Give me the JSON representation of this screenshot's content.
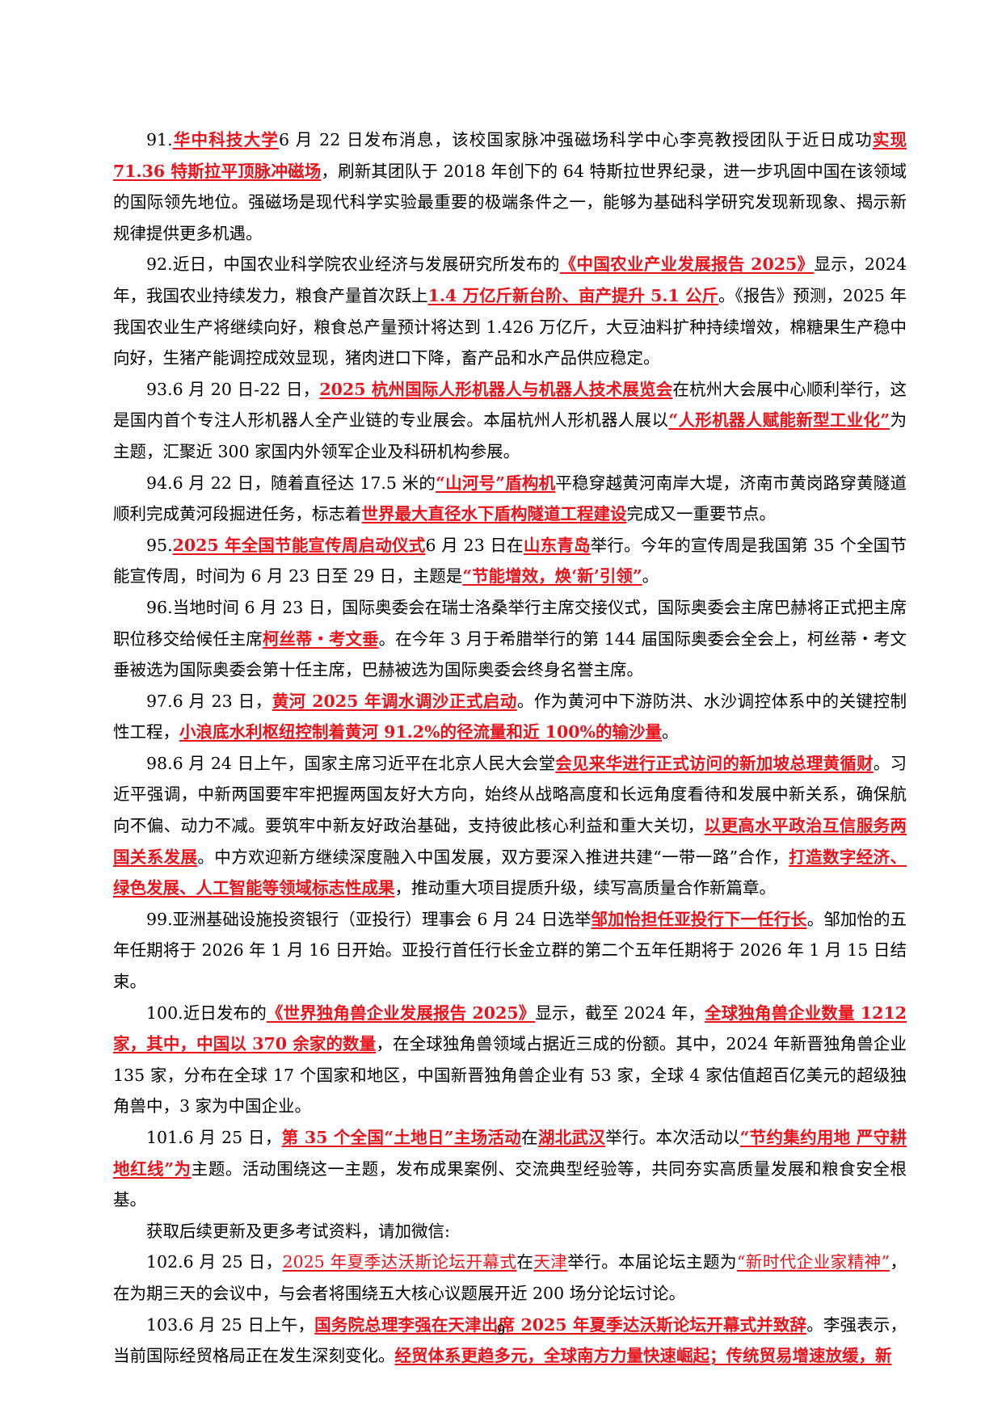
{
  "page_number": "9",
  "paragraphs": [
    {
      "id": "p91",
      "segments": [
        {
          "t": "91.",
          "h": 0
        },
        {
          "t": "华中科技大学",
          "h": 1
        },
        {
          "t": "6 月 22 日发布消息，该校国家脉冲强磁场科学中心李亮教授团队于近日成功",
          "h": 0
        },
        {
          "t": "实现 71.36 特斯拉平顶脉冲磁场",
          "h": 1
        },
        {
          "t": "，刷新其团队于 2018 年创下的 64 特斯拉世界纪录，进一步巩固中国在该领域的国际领先地位。强磁场是现代科学实验最重要的极端条件之一，能够为基础科学研究发现新现象、揭示新规律提供更多机遇。",
          "h": 0
        }
      ]
    },
    {
      "id": "p92",
      "segments": [
        {
          "t": "92.近日，中国农业科学院农业经济与发展研究所发布的",
          "h": 0
        },
        {
          "t": "《中国农业产业发展报告 2025》",
          "h": 1
        },
        {
          "t": "显示，2024 年，我国农业持续发力，粮食产量首次跃上",
          "h": 0
        },
        {
          "t": "1.4 万亿斤新台阶、亩产提升 5.1 公斤",
          "h": 1
        },
        {
          "t": "。《报告》预测，2025 年我国农业生产将继续向好，粮食总产量预计将达到 1.426 万亿斤，大豆油料扩种持续增效，棉糖果生产稳中向好，生猪产能调控成效显现，猪肉进口下降，畜产品和水产品供应稳定。",
          "h": 0
        }
      ]
    },
    {
      "id": "p93",
      "segments": [
        {
          "t": "93.6 月 20 日-22 日，",
          "h": 0
        },
        {
          "t": "2025 杭州国际人形机器人与机器人技术展览会",
          "h": 1
        },
        {
          "t": "在杭州大会展中心顺利举行，这是国内首个专注人形机器人全产业链的专业展会。本届杭州人形机器人展以",
          "h": 0
        },
        {
          "t": "“人形机器人赋能新型工业化”",
          "h": 1
        },
        {
          "t": "为主题，汇聚近 300 家国内外领军企业及科研机构参展。",
          "h": 0
        }
      ]
    },
    {
      "id": "p94",
      "segments": [
        {
          "t": "94.6 月 22 日，随着直径达 17.5 米的",
          "h": 0
        },
        {
          "t": "“山河号”盾构机",
          "h": 1
        },
        {
          "t": "平稳穿越黄河南岸大堤，济南市黄岗路穿黄隧道顺利完成黄河段掘进任务，标志着",
          "h": 0
        },
        {
          "t": "世界最大直径水下盾构隧道工程建设",
          "h": 1
        },
        {
          "t": "完成又一重要节点。",
          "h": 0
        }
      ]
    },
    {
      "id": "p95",
      "segments": [
        {
          "t": "95.",
          "h": 0
        },
        {
          "t": "2025 年全国节能宣传周启动仪式",
          "h": 1
        },
        {
          "t": "6 月 23 日在",
          "h": 0
        },
        {
          "t": "山东青岛",
          "h": 1
        },
        {
          "t": "举行。今年的宣传周是我国第 35 个全国节能宣传周，时间为 6 月 23 日至 29 日，主题是",
          "h": 0
        },
        {
          "t": "“节能增效，焕‘新’引领”",
          "h": 1
        },
        {
          "t": "。",
          "h": 0
        }
      ]
    },
    {
      "id": "p96",
      "segments": [
        {
          "t": "96.当地时间 6 月 23 日，国际奥委会在瑞士洛桑举行主席交接仪式，国际奥委会主席巴赫将正式把主席职位移交给候任主席",
          "h": 0
        },
        {
          "t": "柯丝蒂・考文垂",
          "h": 1
        },
        {
          "t": "。在今年 3 月于希腊举行的第 144 届国际奥委会全会上，柯丝蒂・考文垂被选为国际奥委会第十任主席，巴赫被选为国际奥委会终身名誉主席。",
          "h": 0
        }
      ]
    },
    {
      "id": "p97",
      "segments": [
        {
          "t": "97.6 月 23 日，",
          "h": 0
        },
        {
          "t": "黄河 2025 年调水调沙正式启动",
          "h": 1
        },
        {
          "t": "。作为黄河中下游防洪、水沙调控体系中的关键控制性工程，",
          "h": 0
        },
        {
          "t": "小浪底水利枢纽控制着黄河 91.2%的径流量和近 100%的输沙量",
          "h": 1
        },
        {
          "t": "。",
          "h": 0
        }
      ]
    },
    {
      "id": "p98",
      "segments": [
        {
          "t": "98.6 月 24 日上午，国家主席习近平在北京人民大会堂",
          "h": 0
        },
        {
          "t": "会见来华进行正式访问的新加坡总理黄循财",
          "h": 1
        },
        {
          "t": "。习近平强调，中新两国要牢牢把握两国友好大方向，始终从战略高度和长远角度看待和发展中新关系，确保航向不偏、动力不减。要筑牢中新友好政治基础，支持彼此核心利益和重大关切，",
          "h": 0
        },
        {
          "t": "以更高水平政治互信服务两国关系发展",
          "h": 1
        },
        {
          "t": "。中方欢迎新方继续深度融入中国发展，双方要深入推进共建“一带一路”合作，",
          "h": 0
        },
        {
          "t": "打造数字经济、绿色发展、人工智能等领域标志性成果",
          "h": 1
        },
        {
          "t": "，推动重大项目提质升级，续写高质量合作新篇章。",
          "h": 0
        }
      ]
    },
    {
      "id": "p99",
      "segments": [
        {
          "t": "99.亚洲基础设施投资银行（亚投行）理事会 6 月 24 日选举",
          "h": 0
        },
        {
          "t": "邹加怡担任亚投行下一任行长",
          "h": 1
        },
        {
          "t": "。邹加怡的五年任期将于 2026 年 1 月 16 日开始。亚投行首任行长金立群的第二个五年任期将于 2026 年 1 月 15 日结束。",
          "h": 0
        }
      ]
    },
    {
      "id": "p100",
      "segments": [
        {
          "t": "100.近日发布的",
          "h": 0
        },
        {
          "t": "《世界独角兽企业发展报告 2025》",
          "h": 1
        },
        {
          "t": "显示，截至 2024 年，",
          "h": 0
        },
        {
          "t": "全球独角兽企业数量 1212 家，其中，中国以 370 余家的数量",
          "h": 1
        },
        {
          "t": "，在全球独角兽领域占据近三成的份额。其中，2024 年新晋独角兽企业 135 家，分布在全球 17 个国家和地区，中国新晋独角兽企业有 53 家，全球 4 家估值超百亿美元的超级独角兽中，3 家为中国企业。",
          "h": 0
        }
      ]
    },
    {
      "id": "p101",
      "segments": [
        {
          "t": "101.6 月 25 日，",
          "h": 0
        },
        {
          "t": "第 35 个全国“土地日”主场活动",
          "h": 1
        },
        {
          "t": "在",
          "h": 0
        },
        {
          "t": "湖北武汉",
          "h": 1
        },
        {
          "t": "举行。本次活动以",
          "h": 0
        },
        {
          "t": "“节约集约用地 严守耕地红线”为",
          "h": 1
        },
        {
          "t": "主题。活动围绕这一主题，发布成果案例、交流典型经验等，共同夯实高质量发展和粮食安全根基。",
          "h": 0
        }
      ]
    },
    {
      "id": "pnote",
      "segments": [
        {
          "t": "获取后续更新及更多考试资料，请加微信:",
          "h": 0
        }
      ]
    },
    {
      "id": "p102",
      "segments": [
        {
          "t": "102.6 月 25 日，",
          "h": 0
        },
        {
          "t": "2025 年夏季达沃斯论坛开幕式",
          "h": 2
        },
        {
          "t": "在",
          "h": 0
        },
        {
          "t": "天津",
          "h": 2
        },
        {
          "t": "举行。本届论坛主题为",
          "h": 0
        },
        {
          "t": "“新时代企业家精神”",
          "h": 2
        },
        {
          "t": "，在为期三天的会议中，与会者将围绕五大核心议题展开近 200 场分论坛讨论。",
          "h": 0
        }
      ]
    },
    {
      "id": "p103",
      "segments": [
        {
          "t": "103.6 月 25 日上午，",
          "h": 0
        },
        {
          "t": "国务院总理李强在天津出席 2025 年夏季达沃斯论坛开幕式并致辞",
          "h": 1
        },
        {
          "t": "。李强表示，当前国际经贸格局正在发生深刻变化。",
          "h": 0
        },
        {
          "t": "经贸体系更趋多元，全球南方力量快速崛起；传统贸易增速放缓，新",
          "h": 1
        }
      ]
    }
  ]
}
